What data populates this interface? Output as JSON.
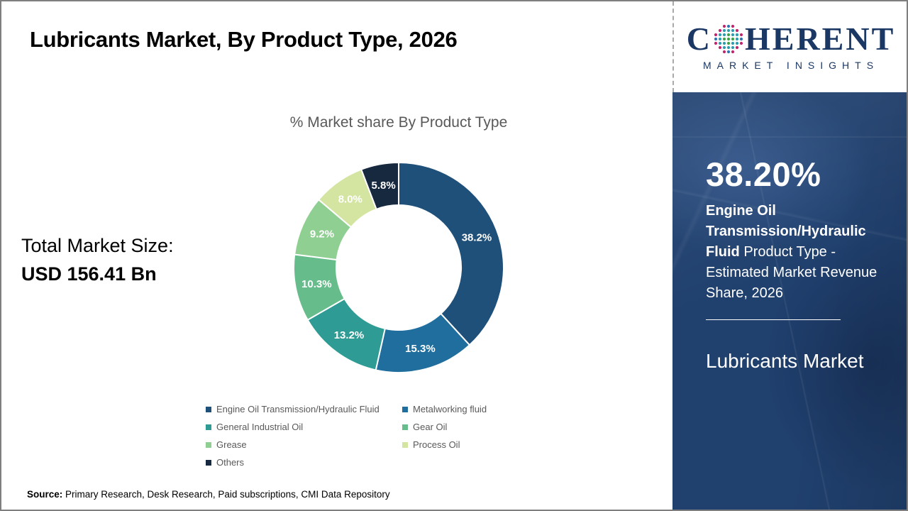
{
  "page": {
    "title": "Lubricants Market, By Product Type, 2026"
  },
  "brand": {
    "name_prefix": "C",
    "name_suffix": "HERENT",
    "subtitle": "MARKET INSIGHTS",
    "text_color": "#1b3764",
    "globe_dot_colors": {
      "center": "#3ca647",
      "middle": "#2d9db0",
      "outer_a": "#c2266e",
      "outer_b": "#2e75b6"
    }
  },
  "left_panel": {
    "total_label": "Total Market Size:",
    "total_value": "USD 156.41 Bn"
  },
  "chart_data": {
    "type": "pie",
    "donut": true,
    "title": "% Market share By Product Type",
    "categories": [
      "Engine Oil Transmission/Hydraulic Fluid",
      "Metalworking fluid",
      "General Industrial Oil",
      "Gear Oil",
      "Grease",
      "Process Oil",
      "Others"
    ],
    "values": [
      38.2,
      15.3,
      13.2,
      10.3,
      9.2,
      8.0,
      5.8
    ],
    "labels": [
      "38.2%",
      "15.3%",
      "13.2%",
      "10.3%",
      "9.2%",
      "8.0%",
      "5.8%"
    ],
    "colors": [
      "#1f5079",
      "#1f6e9e",
      "#2e9c94",
      "#66bd8b",
      "#90cf92",
      "#d3e5a1",
      "#17293e"
    ],
    "start_angle_deg": 0,
    "direction": "clockwise",
    "legend_position": "bottom"
  },
  "sidebar": {
    "background": "#20406e",
    "stat_value": "38.20%",
    "stat_bold": "Engine Oil Transmission/Hydraulic Fluid ",
    "stat_rest": "Product Type - Estimated Market Revenue Share, 2026",
    "footer_title": "Lubricants Market"
  },
  "source": {
    "label": "Source:",
    "text": " Primary Research, Desk Research, Paid subscriptions, CMI Data Repository"
  }
}
